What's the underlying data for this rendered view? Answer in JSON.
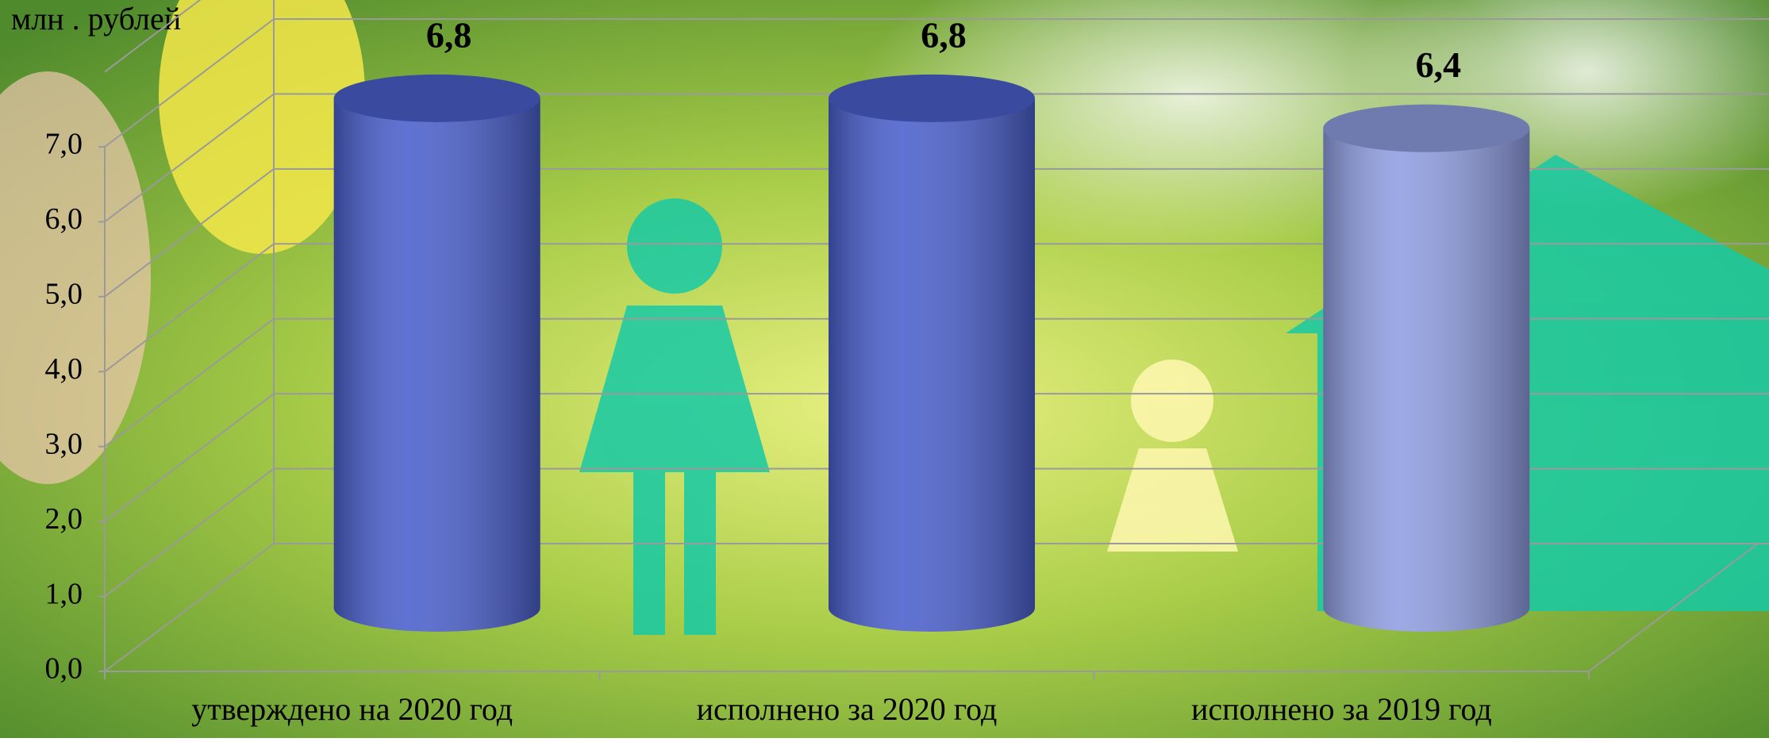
{
  "chart_data": {
    "type": "bar3d",
    "y_label": "млн . рублей",
    "categories": [
      "утверждено на 2020 год",
      "исполнено за 2020 год",
      "исполнено за 2019 год"
    ],
    "values": [
      6.8,
      6.8,
      6.4
    ],
    "value_labels": [
      "6,8",
      "6,8",
      "6,4"
    ],
    "colors": [
      "#4a5fcc",
      "#4a5fcc",
      "#8f9de0"
    ],
    "ylim": [
      0,
      8
    ],
    "yticks": [
      {
        "value": 0,
        "label": "0,0"
      },
      {
        "value": 1,
        "label": "1,0"
      },
      {
        "value": 2,
        "label": "2,0"
      },
      {
        "value": 3,
        "label": "3,0"
      },
      {
        "value": 4,
        "label": "4,0"
      },
      {
        "value": 5,
        "label": "5,0"
      },
      {
        "value": 6,
        "label": "6,0"
      },
      {
        "value": 7,
        "label": "7,0"
      }
    ],
    "grid": true
  }
}
